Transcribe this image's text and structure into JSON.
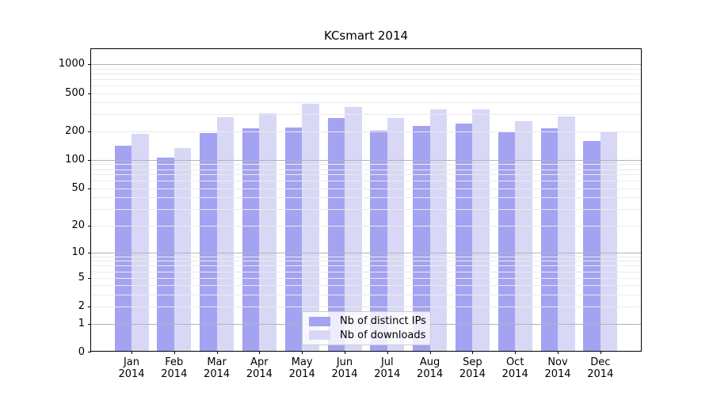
{
  "chart_data": {
    "type": "bar",
    "title": "KCsmart 2014",
    "x": {
      "months": [
        "Jan",
        "Feb",
        "Mar",
        "Apr",
        "May",
        "Jun",
        "Jul",
        "Aug",
        "Sep",
        "Oct",
        "Nov",
        "Dec"
      ],
      "year": "2014"
    },
    "series": [
      {
        "name": "Nb of distinct IPs",
        "color": "#a3a3f2",
        "values": [
          135,
          102,
          184,
          205,
          212,
          264,
          195,
          220,
          233,
          187,
          205,
          152
        ]
      },
      {
        "name": "Nb of downloads",
        "color": "#d8d8f6",
        "values": [
          182,
          128,
          272,
          296,
          375,
          345,
          264,
          326,
          324,
          244,
          275,
          190
        ]
      }
    ],
    "y_axis": {
      "scale": "log1p",
      "ylim": [
        0,
        1435
      ],
      "tick_labels": [
        1000,
        500,
        200,
        100,
        50,
        20,
        10,
        5,
        2,
        1,
        0
      ],
      "major_gridlines": [
        1,
        10,
        100,
        1000
      ],
      "minor_gridlines": [
        2,
        3,
        4,
        5,
        6,
        7,
        8,
        9,
        20,
        30,
        40,
        50,
        60,
        70,
        80,
        90,
        200,
        300,
        400,
        500,
        600,
        700,
        800,
        900
      ]
    },
    "legend": {
      "entries": [
        "Nb of distinct IPs",
        "Nb of downloads"
      ],
      "position": "lower center"
    },
    "colors": {
      "background": "#ffffff",
      "spine": "#000000",
      "text": "#000000",
      "major_grid": "#b3b3b3",
      "minor_grid": "#ebebeb"
    },
    "grid": true
  }
}
